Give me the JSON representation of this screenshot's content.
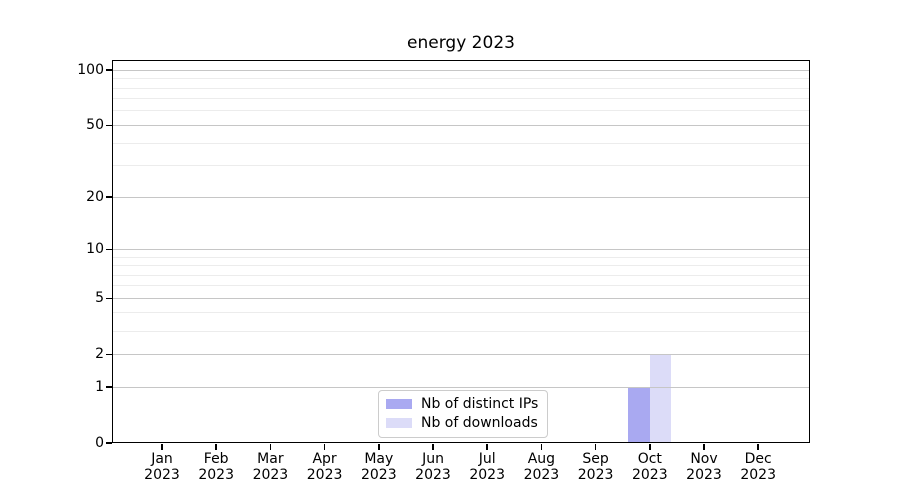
{
  "figure": {
    "background": "#ffffff"
  },
  "chart_data": {
    "type": "bar",
    "title": "energy 2023",
    "xlabel": "",
    "ylabel": "",
    "categories": [
      "Jan 2023",
      "Feb 2023",
      "Mar 2023",
      "Apr 2023",
      "May 2023",
      "Jun 2023",
      "Jul 2023",
      "Aug 2023",
      "Sep 2023",
      "Oct 2023",
      "Nov 2023",
      "Dec 2023"
    ],
    "series": [
      {
        "name": "Nb of distinct IPs",
        "color": "#a9a9f1",
        "values": [
          0,
          0,
          0,
          0,
          0,
          0,
          0,
          0,
          0,
          1,
          0,
          0
        ]
      },
      {
        "name": "Nb of downloads",
        "color": "#dcdcf8",
        "values": [
          0,
          0,
          0,
          0,
          0,
          0,
          0,
          0,
          0,
          2,
          0,
          0
        ]
      }
    ],
    "y_axis": {
      "scale": "log1p",
      "ticks": [
        0,
        1,
        2,
        5,
        10,
        20,
        50,
        100
      ],
      "minor_gridlines": [
        3,
        4,
        6,
        7,
        8,
        9,
        30,
        40,
        60,
        70,
        80,
        90
      ],
      "ylim": [
        0,
        115
      ]
    },
    "grid": {
      "major_color": "#c6c6c6",
      "minor_color": "#ececec",
      "visible": true
    },
    "legend": {
      "position": "lower center-left inside plot",
      "border_color": "#cccccc"
    }
  }
}
